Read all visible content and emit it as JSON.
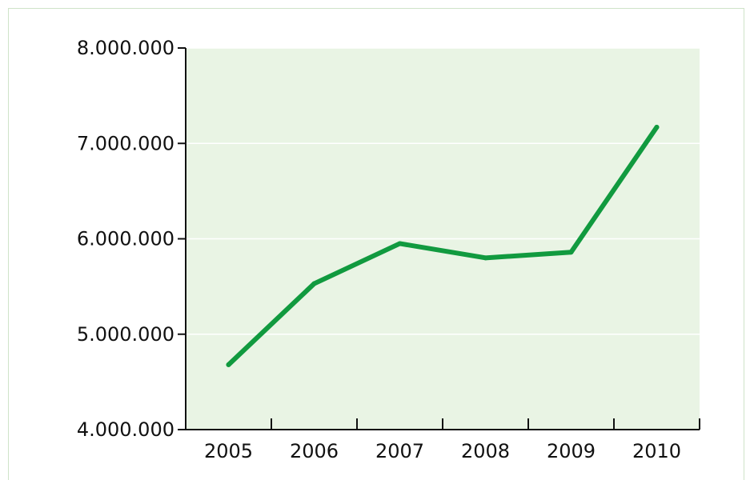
{
  "chart_data": {
    "type": "line",
    "title": "",
    "xlabel": "",
    "ylabel": "",
    "categories": [
      "2005",
      "2006",
      "2007",
      "2008",
      "2009",
      "2010"
    ],
    "series": [
      {
        "values": [
          4680000,
          5530000,
          5950000,
          5800000,
          5860000,
          7170000
        ]
      }
    ],
    "ylim": [
      4000000,
      8000000
    ],
    "yticks": [
      4000000,
      5000000,
      6000000,
      7000000,
      8000000
    ],
    "ytick_labels": [
      "4.000.000",
      "5.000.000",
      "6.000.000",
      "7.000.000",
      "8.000.000"
    ],
    "grid": true,
    "legend": "none",
    "colors": {
      "line": "#119a3f",
      "plot_bg": "#e9f4e4",
      "gridline": "#ffffff",
      "axis": "#111111"
    }
  }
}
